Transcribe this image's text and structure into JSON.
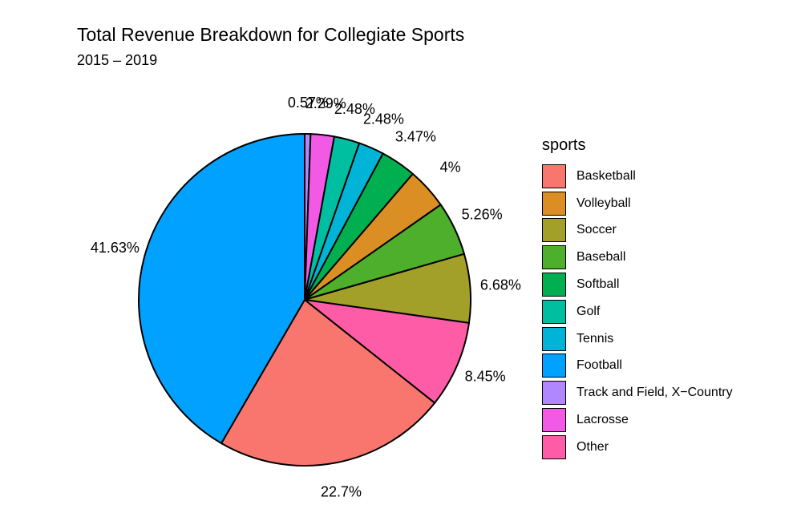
{
  "chart_data": {
    "type": "pie",
    "title": "Total Revenue Breakdown for Collegiate Sports",
    "subtitle": "2015 – 2019",
    "legend_title": "sports",
    "legend_position": "right",
    "legend": [
      {
        "name": "Basketball",
        "color": "#F8766D"
      },
      {
        "name": "Volleyball",
        "color": "#DB8E24"
      },
      {
        "name": "Soccer",
        "color": "#A3A02A"
      },
      {
        "name": "Baseball",
        "color": "#4DAF2B"
      },
      {
        "name": "Softball",
        "color": "#00B050"
      },
      {
        "name": "Golf",
        "color": "#00BFA0"
      },
      {
        "name": "Tennis",
        "color": "#00B4D8"
      },
      {
        "name": "Football",
        "color": "#00A1FF"
      },
      {
        "name": "Track and Field, X−Country",
        "color": "#B087FF"
      },
      {
        "name": "Lacrosse",
        "color": "#F25AE6"
      },
      {
        "name": "Other",
        "color": "#FF5CA8"
      }
    ],
    "slices": [
      {
        "name": "Track and Field, X−Country",
        "value": 0.57,
        "label": "0.57%"
      },
      {
        "name": "Lacrosse",
        "value": 2.29,
        "label": "2.29%"
      },
      {
        "name": "Golf",
        "value": 2.48,
        "label": "2.48%"
      },
      {
        "name": "Tennis",
        "value": 2.48,
        "label": "2.48%"
      },
      {
        "name": "Softball",
        "value": 3.47,
        "label": "3.47%"
      },
      {
        "name": "Volleyball",
        "value": 4,
        "label": "4%"
      },
      {
        "name": "Baseball",
        "value": 5.26,
        "label": "5.26%"
      },
      {
        "name": "Soccer",
        "value": 6.68,
        "label": "6.68%"
      },
      {
        "name": "Other",
        "value": 8.45,
        "label": "8.45%"
      },
      {
        "name": "Basketball",
        "value": 22.7,
        "label": "22.7%"
      },
      {
        "name": "Football",
        "value": 41.63,
        "label": "41.63%"
      }
    ]
  }
}
